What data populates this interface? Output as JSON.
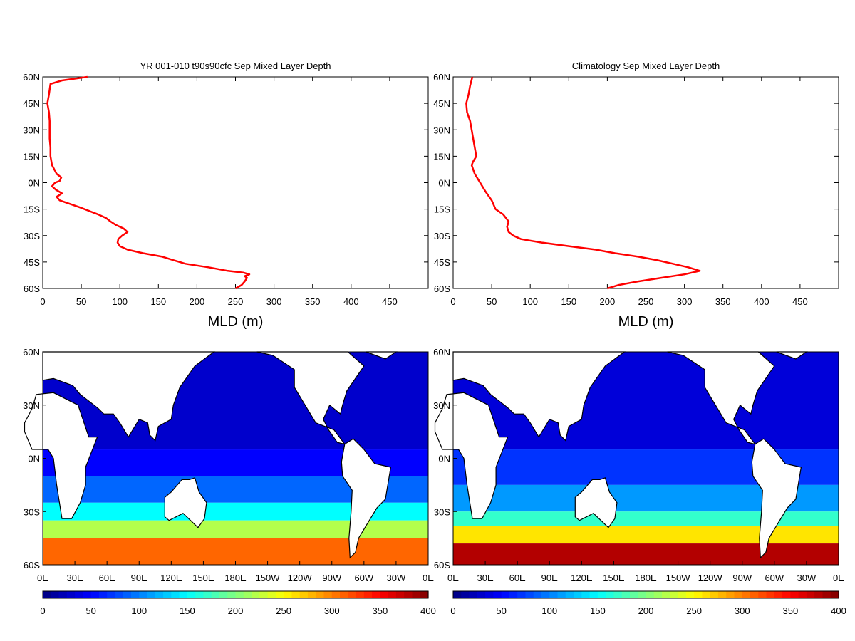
{
  "chart_data": [
    {
      "type": "line",
      "title": "YR 001-010 t90s90cfc Sep Mixed Layer Depth",
      "xlabel": "MLD (m)",
      "xlim": [
        0,
        500
      ],
      "ylim": [
        -60,
        60
      ],
      "x_ticks": [
        "0",
        "50",
        "100",
        "150",
        "200",
        "250",
        "300",
        "350",
        "400",
        "450"
      ],
      "y_ticks": [
        "60N",
        "45N",
        "30N",
        "15N",
        "0N",
        "15S",
        "30S",
        "45S",
        "60S"
      ],
      "line_color": "#ff0000",
      "series": [
        {
          "y": [
            60,
            58,
            56,
            50,
            45,
            40,
            35,
            30,
            25,
            20,
            15,
            10,
            5,
            3,
            1,
            0,
            -2,
            -4,
            -6,
            -8,
            -10,
            -12,
            -14,
            -16,
            -18,
            -20,
            -22,
            -24,
            -26,
            -28,
            -30,
            -32,
            -34,
            -36,
            -38,
            -40,
            -42,
            -44,
            -46,
            -48,
            -50,
            -51,
            -52,
            -53,
            -54,
            -56,
            -58,
            -60
          ],
          "x": [
            58,
            25,
            10,
            8,
            6,
            8,
            9,
            9,
            9,
            10,
            10,
            12,
            18,
            24,
            22,
            16,
            12,
            17,
            25,
            18,
            22,
            35,
            48,
            60,
            72,
            82,
            88,
            95,
            105,
            110,
            103,
            98,
            97,
            100,
            110,
            130,
            155,
            170,
            185,
            215,
            240,
            260,
            268,
            262,
            265,
            262,
            258,
            250
          ]
        }
      ]
    },
    {
      "type": "line",
      "title": "Climatology Sep Mixed Layer Depth",
      "xlabel": "MLD (m)",
      "xlim": [
        0,
        500
      ],
      "ylim": [
        -60,
        60
      ],
      "x_ticks": [
        "0",
        "50",
        "100",
        "150",
        "200",
        "250",
        "300",
        "350",
        "400",
        "450"
      ],
      "y_ticks": [
        "60N",
        "45N",
        "30N",
        "15N",
        "0N",
        "15S",
        "30S",
        "45S",
        "60S"
      ],
      "line_color": "#ff0000",
      "series": [
        {
          "y": [
            60,
            55,
            50,
            45,
            40,
            35,
            30,
            25,
            20,
            15,
            12,
            10,
            5,
            0,
            -5,
            -10,
            -15,
            -18,
            -22,
            -25,
            -28,
            -30,
            -32,
            -34,
            -36,
            -38,
            -40,
            -42,
            -44,
            -46,
            -48,
            -50,
            -52,
            -54,
            -56,
            -58,
            -60
          ],
          "x": [
            25,
            22,
            20,
            17,
            18,
            22,
            24,
            26,
            28,
            30,
            26,
            24,
            28,
            35,
            42,
            50,
            55,
            65,
            72,
            70,
            72,
            78,
            88,
            115,
            150,
            185,
            210,
            240,
            265,
            285,
            305,
            320,
            300,
            270,
            240,
            215,
            200
          ]
        }
      ]
    },
    {
      "type": "heatmap",
      "title": "",
      "x_ticks": [
        "0E",
        "30E",
        "60E",
        "90E",
        "120E",
        "150E",
        "180E",
        "150W",
        "120W",
        "90W",
        "60W",
        "30W",
        "0E"
      ],
      "y_ticks": [
        "60N",
        "30N",
        "0N",
        "30S",
        "60S"
      ],
      "colorbar": {
        "min": 0,
        "max": 400,
        "ticks": [
          "0",
          "50",
          "100",
          "150",
          "200",
          "250",
          "300",
          "350",
          "400"
        ]
      },
      "bands": [
        {
          "lat": [
            60,
            5
          ],
          "value": 30
        },
        {
          "lat": [
            5,
            -10
          ],
          "value": 50
        },
        {
          "lat": [
            -10,
            -25
          ],
          "value": 90
        },
        {
          "lat": [
            -25,
            -35
          ],
          "value": 150
        },
        {
          "lat": [
            -35,
            -45
          ],
          "value": 220
        },
        {
          "lat": [
            -45,
            -60
          ],
          "value": 310
        }
      ]
    },
    {
      "type": "heatmap",
      "title": "",
      "x_ticks": [
        "0E",
        "30E",
        "60E",
        "90E",
        "120E",
        "150E",
        "180E",
        "150W",
        "120W",
        "90W",
        "60W",
        "30W",
        "0E"
      ],
      "y_ticks": [
        "60N",
        "30N",
        "0N",
        "30S",
        "60S"
      ],
      "colorbar": {
        "min": 0,
        "max": 400,
        "ticks": [
          "0",
          "50",
          "100",
          "150",
          "200",
          "250",
          "300",
          "350",
          "400"
        ]
      },
      "bands": [
        {
          "lat": [
            60,
            5
          ],
          "value": 35
        },
        {
          "lat": [
            5,
            -15
          ],
          "value": 70
        },
        {
          "lat": [
            -15,
            -30
          ],
          "value": 110
        },
        {
          "lat": [
            -30,
            -38
          ],
          "value": 170
        },
        {
          "lat": [
            -38,
            -48
          ],
          "value": 260
        },
        {
          "lat": [
            -48,
            -60
          ],
          "value": 380
        }
      ]
    }
  ]
}
